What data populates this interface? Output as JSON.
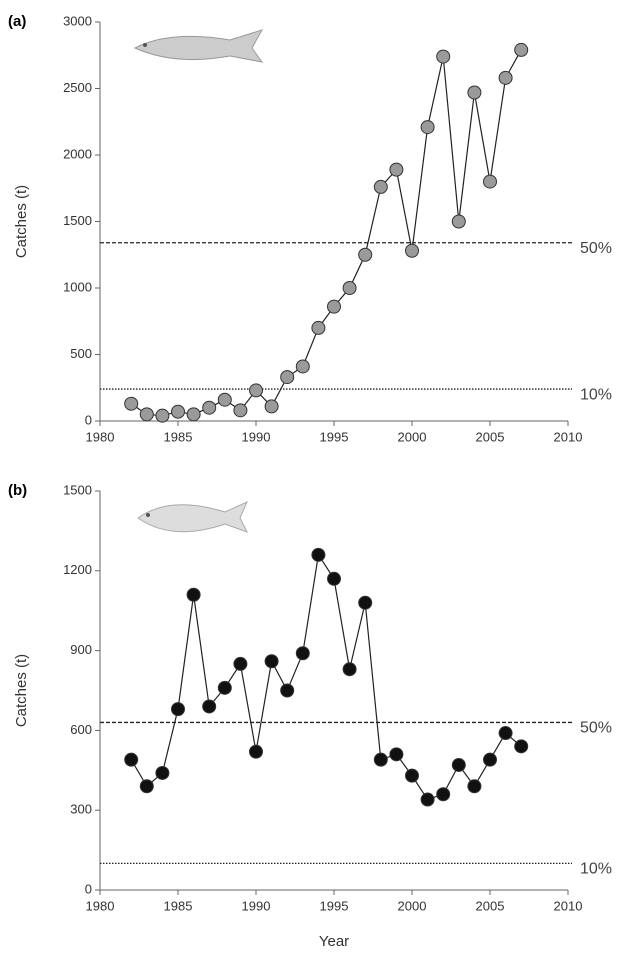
{
  "chart_data": [
    {
      "type": "line",
      "panel_label": "(a)",
      "y_label": "Catches (t)",
      "x": [
        1982,
        1983,
        1984,
        1985,
        1986,
        1987,
        1988,
        1989,
        1990,
        1991,
        1992,
        1993,
        1994,
        1995,
        1996,
        1997,
        1998,
        1999,
        2000,
        2001,
        2002,
        2003,
        2004,
        2005,
        2006,
        2007
      ],
      "values": [
        130,
        50,
        40,
        70,
        50,
        100,
        160,
        80,
        230,
        110,
        330,
        410,
        700,
        860,
        1000,
        1250,
        1760,
        1890,
        1280,
        2210,
        2740,
        1500,
        2470,
        1800,
        2580,
        2790
      ],
      "color": "#9a9a9a",
      "xlim": [
        1980,
        2010
      ],
      "xticks": [
        1980,
        1985,
        1990,
        1995,
        2000,
        2005,
        2010
      ],
      "ylim": [
        0,
        3000
      ],
      "yticks": [
        0,
        500,
        1000,
        1500,
        2000,
        2500,
        3000
      ],
      "reference_lines": [
        {
          "value": 1340,
          "label": "50%",
          "style": "dashed"
        },
        {
          "value": 240,
          "label": "10%",
          "style": "dotted"
        }
      ]
    },
    {
      "type": "line",
      "panel_label": "(b)",
      "y_label": "Catches (t)",
      "x_label": "Year",
      "x": [
        1982,
        1983,
        1984,
        1985,
        1986,
        1987,
        1988,
        1989,
        1990,
        1991,
        1992,
        1993,
        1994,
        1995,
        1996,
        1997,
        1998,
        1999,
        2000,
        2001,
        2002,
        2003,
        2004,
        2005,
        2006,
        2007
      ],
      "values": [
        490,
        390,
        440,
        680,
        1110,
        690,
        760,
        850,
        520,
        860,
        750,
        890,
        1260,
        1170,
        830,
        1080,
        490,
        510,
        430,
        340,
        360,
        470,
        390,
        490,
        590,
        540
      ],
      "color": "#111111",
      "xlim": [
        1980,
        2010
      ],
      "xticks": [
        1980,
        1985,
        1990,
        1995,
        2000,
        2005,
        2010
      ],
      "ylim": [
        0,
        1500
      ],
      "yticks": [
        0,
        300,
        600,
        900,
        1200,
        1500
      ],
      "reference_lines": [
        {
          "value": 630,
          "label": "50%",
          "style": "dashed"
        },
        {
          "value": 100,
          "label": "10%",
          "style": "dotted"
        }
      ]
    }
  ]
}
